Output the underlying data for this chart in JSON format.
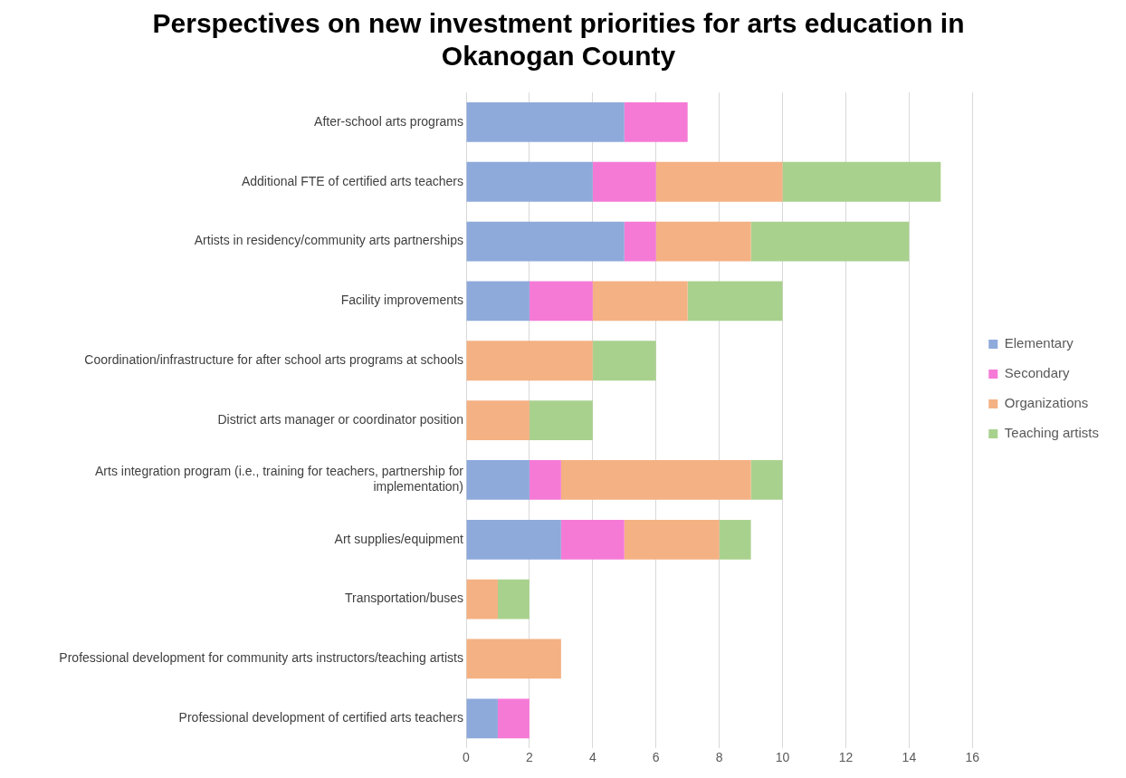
{
  "chart_data": {
    "type": "bar",
    "orientation": "horizontal",
    "stacked": true,
    "title": "Perspectives on new investment priorities for arts education in Okanogan County",
    "categories": [
      "After-school arts programs",
      "Additional FTE of certified arts teachers",
      "Artists in residency/community arts partnerships",
      "Facility improvements",
      "Coordination/infrastructure for after school arts programs at schools",
      "District arts manager or coordinator position",
      "Arts integration program (i.e., training for teachers, partnership for implementation)",
      "Art supplies/equipment",
      "Transportation/buses",
      "Professional development for community arts instructors/teaching artists",
      "Professional development of certified arts teachers"
    ],
    "series": [
      {
        "name": "Elementary",
        "color": "#8eaadb",
        "values": [
          5,
          4,
          5,
          2,
          0,
          0,
          2,
          3,
          0,
          0,
          1
        ]
      },
      {
        "name": "Secondary",
        "color": "#f57ad6",
        "values": [
          2,
          2,
          1,
          2,
          0,
          0,
          1,
          2,
          0,
          0,
          1
        ]
      },
      {
        "name": "Organizations",
        "color": "#f4b183",
        "values": [
          0,
          4,
          3,
          3,
          4,
          2,
          6,
          3,
          1,
          3,
          0
        ]
      },
      {
        "name": "Teaching artists",
        "color": "#a9d18e",
        "values": [
          0,
          5,
          5,
          3,
          2,
          2,
          1,
          1,
          1,
          0,
          0
        ]
      }
    ],
    "xlim": [
      0,
      16
    ],
    "xticks": [
      0,
      2,
      4,
      6,
      8,
      10,
      12,
      14,
      16
    ],
    "grid": "x",
    "legend": "right"
  }
}
